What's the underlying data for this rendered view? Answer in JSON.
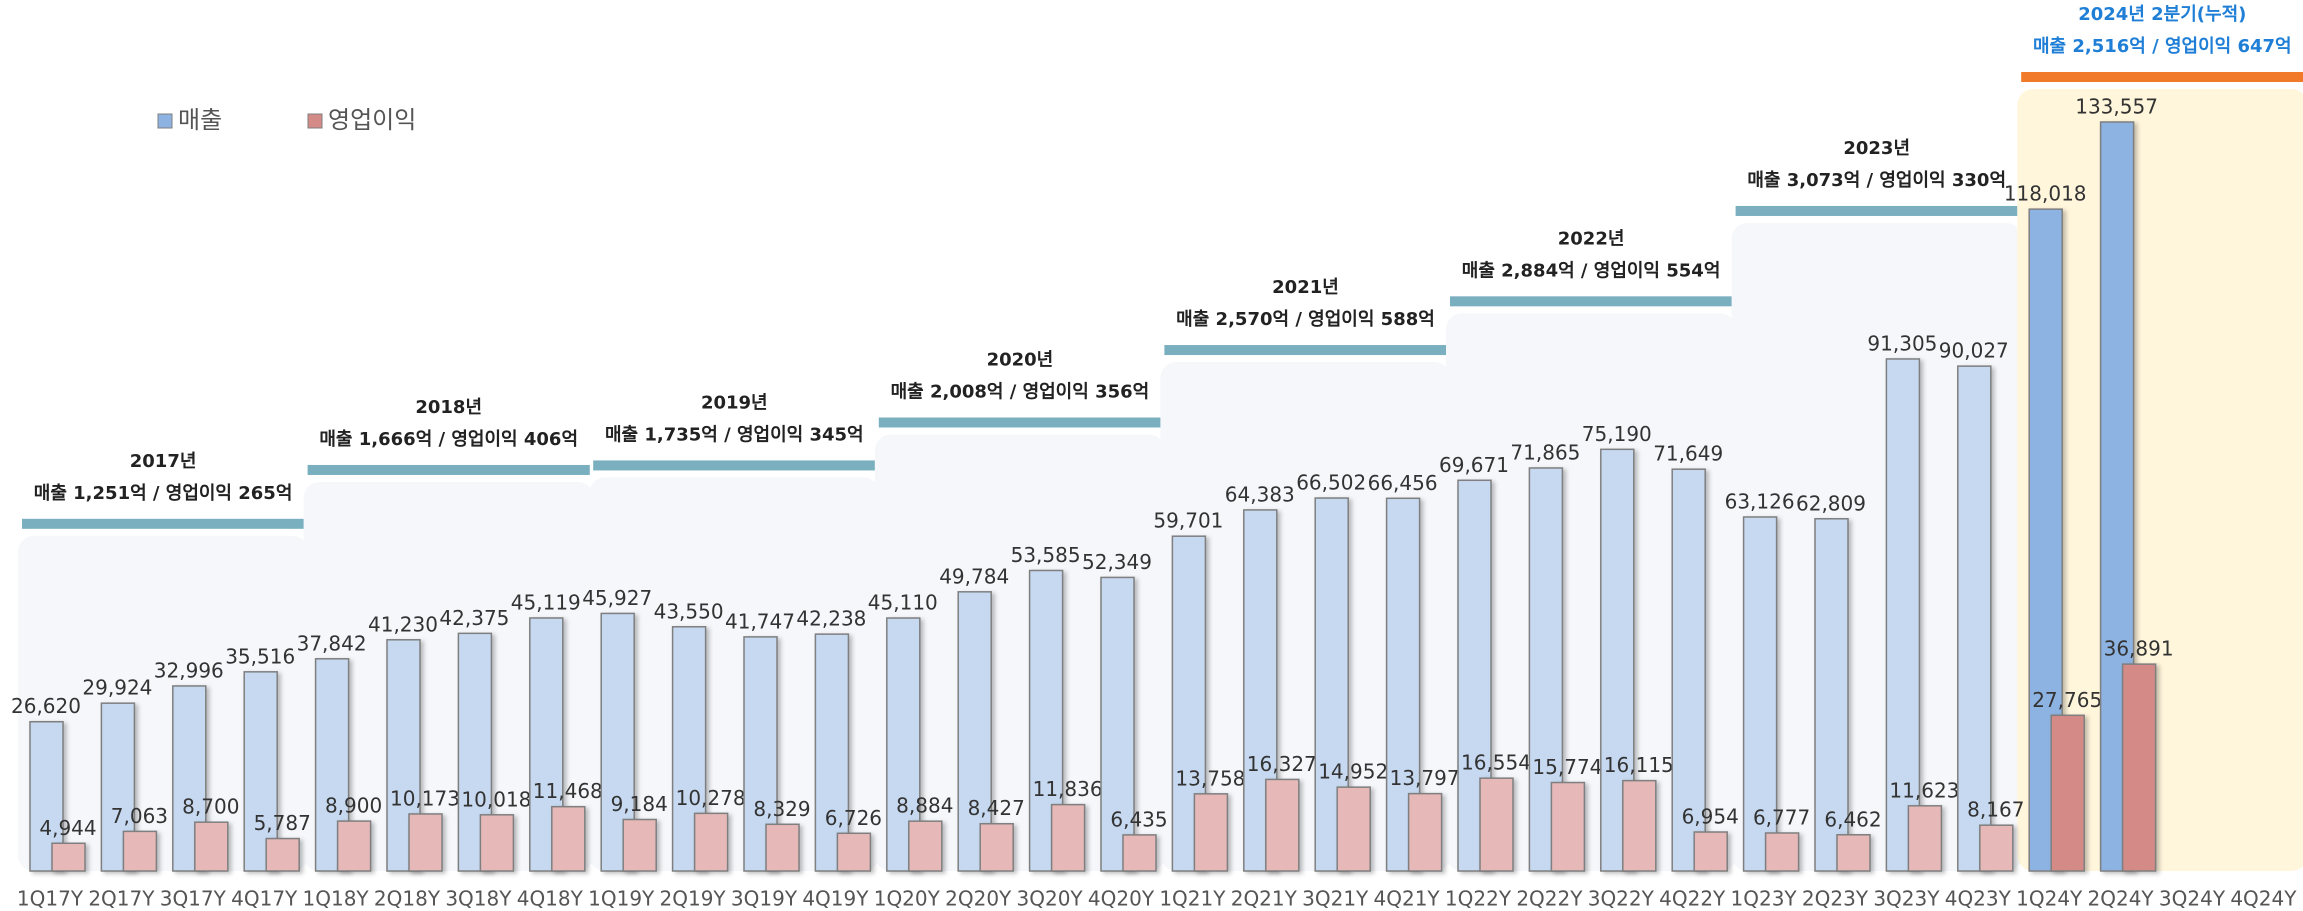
{
  "chart_data": {
    "type": "bar",
    "categories": [
      "1Q17Y",
      "2Q17Y",
      "3Q17Y",
      "4Q17Y",
      "1Q18Y",
      "2Q18Y",
      "3Q18Y",
      "4Q18Y",
      "1Q19Y",
      "2Q19Y",
      "3Q19Y",
      "4Q19Y",
      "1Q20Y",
      "2Q20Y",
      "3Q20Y",
      "4Q20Y",
      "1Q21Y",
      "2Q21Y",
      "3Q21Y",
      "4Q21Y",
      "1Q22Y",
      "2Q22Y",
      "3Q22Y",
      "4Q22Y",
      "1Q23Y",
      "2Q23Y",
      "3Q23Y",
      "4Q23Y",
      "1Q24Y",
      "2Q24Y",
      "3Q24Y",
      "4Q24Y"
    ],
    "series": [
      {
        "name": "매출",
        "color": "#c6d9f1",
        "highlight_color": "#8db3e2",
        "values": [
          26620,
          29924,
          32996,
          35516,
          37842,
          41230,
          42375,
          45119,
          45927,
          43550,
          41747,
          42238,
          45110,
          49784,
          53585,
          52349,
          59701,
          64383,
          66502,
          66456,
          69671,
          71865,
          75190,
          71649,
          63126,
          62809,
          91305,
          90027,
          118018,
          133557,
          null,
          null
        ],
        "value_labels": [
          "26,620",
          "29,924",
          "32,996",
          "35,516",
          "37,842",
          "41,230",
          "42,375",
          "45,119",
          "45,927",
          "43,550",
          "41,747",
          "42,238",
          "45,110",
          "49,784",
          "53,585",
          "52,349",
          "59,701",
          "64,383",
          "66,502",
          "66,456",
          "69,671",
          "71,865",
          "75,190",
          "71,649",
          "63,126",
          "62,809",
          "91,305",
          "90,027",
          "118,018",
          "133,557",
          null,
          null
        ]
      },
      {
        "name": "영업이익",
        "color": "#e6b9b8",
        "highlight_color": "#d48a86",
        "values": [
          4944,
          7063,
          8700,
          5787,
          8900,
          10173,
          10018,
          11468,
          9184,
          10278,
          8329,
          6726,
          8884,
          8427,
          11836,
          6435,
          13758,
          16327,
          14952,
          13797,
          16554,
          15774,
          16115,
          6954,
          6777,
          6462,
          11623,
          8167,
          27765,
          36891,
          null,
          null
        ],
        "value_labels": [
          "4,944",
          "7,063",
          "8,700",
          "5,787",
          "8,900",
          "10,173",
          "10,018",
          "11,468",
          "9,184",
          "10,278",
          "8,329",
          "6,726",
          "8,884",
          "8,427",
          "11,836",
          "6,435",
          "13,758",
          "16,327",
          "14,952",
          "13,797",
          "16,554",
          "15,774",
          "16,115",
          "6,954",
          "6,777",
          "6,462",
          "11,623",
          "8,167",
          "27,765",
          "36,891",
          null,
          null
        ]
      }
    ],
    "annotations": [
      {
        "title": "2017년",
        "text": "매출 1,251억 / 영업이익 265억"
      },
      {
        "title": "2018년",
        "text": "매출 1,666억 / 영업이익 406억"
      },
      {
        "title": "2019년",
        "text": "매출 1,735억 / 영업이익 345억"
      },
      {
        "title": "2020년",
        "text": "매출 2,008억 / 영업이익 356억"
      },
      {
        "title": "2021년",
        "text": "매출 2,570억 / 영업이익 588억"
      },
      {
        "title": "2022년",
        "text": "매출 2,884억 / 영업이익 554억"
      },
      {
        "title": "2023년",
        "text": "매출 3,073억 / 영업이익 330억"
      },
      {
        "title": "2024년 2분기(누적)",
        "text": "매출 2,516억 / 영업이익 647억"
      }
    ],
    "annotation_color": "#7aafc0",
    "highlight_band_color": "#f0792a",
    "highlight_fill": "#fff6dc",
    "highlight_text_color": "#1f7fd6",
    "legend": "top-left"
  }
}
